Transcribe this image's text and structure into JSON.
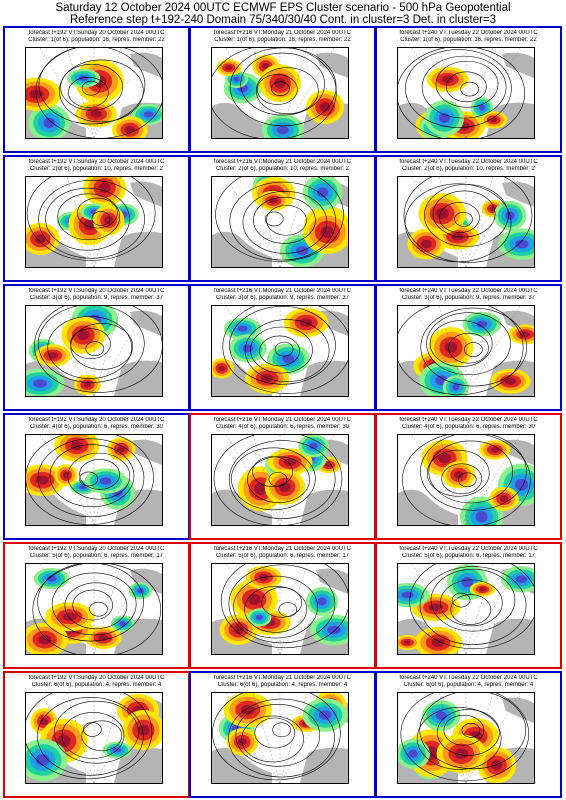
{
  "header": {
    "line1": "Saturday 12 October 2024 00UTC ECMWF EPS Cluster scenario - 500 hPa Geopotential",
    "line2": "Reference step t+192-240 Domain 75/340/30/40 Cont. in cluster=3 Det. in cluster=3"
  },
  "colors": {
    "blue_frame": "#0000cc",
    "red_frame": "#dd0000"
  },
  "rows": [
    {
      "cells": [
        {
          "forecast": "forecast t+192 VT:Sunday 20 October 2024 00UTC",
          "cluster": "Cluster: 1(of 6), population: 16, repres. member: 22",
          "frame": "blue"
        },
        {
          "forecast": "forecast t+216 VT:Monday 21 October 2024 00UTC",
          "cluster": "Cluster: 1(of 6), population: 16, repres. member: 22",
          "frame": "blue"
        },
        {
          "forecast": "forecast t+240 VT:Tuesday 22 October 2024 00UTC",
          "cluster": "Cluster: 1(of 6), population: 16, repres. member: 22",
          "frame": "blue"
        }
      ]
    },
    {
      "cells": [
        {
          "forecast": "forecast t+192 VT:Sunday 20 October 2024 00UTC",
          "cluster": "Cluster: 2(of 6), population: 10, repres. member: 2",
          "frame": "blue"
        },
        {
          "forecast": "forecast t+216 VT:Monday 21 October 2024 00UTC",
          "cluster": "Cluster: 2(of 6), population: 10, repres. member: 2",
          "frame": "blue"
        },
        {
          "forecast": "forecast t+240 VT:Tuesday 22 October 2024 00UTC",
          "cluster": "Cluster: 2(of 6), population: 10, repres. member: 2",
          "frame": "blue"
        }
      ]
    },
    {
      "cells": [
        {
          "forecast": "forecast t+192 VT:Sunday 20 October 2024 00UTC",
          "cluster": "Cluster: 3(of 6), population: 9, repres. member: 37",
          "frame": "blue"
        },
        {
          "forecast": "forecast t+216 VT:Monday 21 October 2024 00UTC",
          "cluster": "Cluster: 3(of 6), population: 9, repres. member: 37",
          "frame": "blue"
        },
        {
          "forecast": "forecast t+240 VT:Tuesday 22 October 2024 00UTC",
          "cluster": "Cluster: 3(of 6), population: 9, repres. member: 37",
          "frame": "blue"
        }
      ]
    },
    {
      "cells": [
        {
          "forecast": "forecast t+192 VT:Sunday 20 October 2024 00UTC",
          "cluster": "Cluster: 4(of 6), population: 6, repres. member: 30",
          "frame": "blue"
        },
        {
          "forecast": "forecast t+216 VT:Monday 21 October 2024 00UTC",
          "cluster": "Cluster: 4(of 6), population: 6, repres. member: 30",
          "frame": "red"
        },
        {
          "forecast": "forecast t+240 VT:Tuesday 22 October 2024 00UTC",
          "cluster": "Cluster: 4(of 6), population: 6, repres. member: 30",
          "frame": "red"
        }
      ]
    },
    {
      "cells": [
        {
          "forecast": "forecast t+192 VT:Sunday 20 October 2024 00UTC",
          "cluster": "Cluster: 5(of 6), population: 6, repres. member: 17",
          "frame": "red"
        },
        {
          "forecast": "forecast t+216 VT:Monday 21 October 2024 00UTC",
          "cluster": "Cluster: 5(of 6), population: 6, repres. member: 17",
          "frame": "red"
        },
        {
          "forecast": "forecast t+240 VT:Tuesday 22 October 2024 00UTC",
          "cluster": "Cluster: 5(of 6), population: 6, repres. member: 17",
          "frame": "red"
        }
      ]
    },
    {
      "cells": [
        {
          "forecast": "forecast t+192 VT:Sunday 20 October 2024 00UTC",
          "cluster": "Cluster: 6(of 6), population: 4, repres. member: 4",
          "frame": "red"
        },
        {
          "forecast": "forecast t+216 VT:Monday 21 October 2024 00UTC",
          "cluster": "Cluster: 6(of 6), population: 4, repres. member: 4",
          "frame": "blue"
        },
        {
          "forecast": "forecast t+240 VT:Tuesday 22 October 2024 00UTC",
          "cluster": "Cluster: 6(of 6), population: 4, repres. member: 4",
          "frame": "blue"
        }
      ]
    }
  ]
}
